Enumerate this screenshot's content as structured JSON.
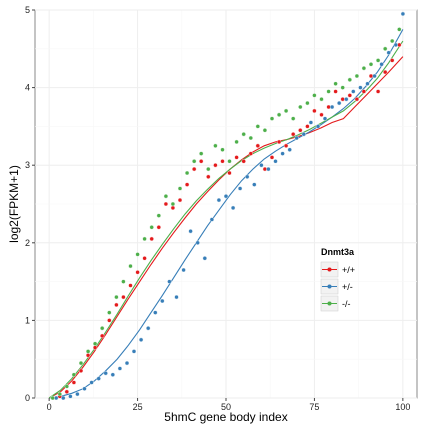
{
  "chart_data": {
    "type": "scatter",
    "xlabel": "5hmC gene body index",
    "ylabel": "log2(FPKM+1)",
    "xlim": [
      -4,
      104
    ],
    "ylim": [
      0,
      5
    ],
    "x_ticks": [
      0,
      25,
      50,
      75,
      100
    ],
    "y_ticks": [
      0,
      1,
      2,
      3,
      4,
      5
    ],
    "x_tick_labels": [
      "0",
      "25",
      "50",
      "75",
      "100"
    ],
    "y_tick_labels": [
      "0",
      "1",
      "2",
      "3",
      "4",
      "5"
    ],
    "grid": true,
    "legend": {
      "title": "Dnmt3a",
      "placement": "right",
      "entries": [
        "+/+",
        "+/-",
        "-/-"
      ]
    },
    "colors": {
      "+/+": "#e41a1c",
      "+/-": "#377eb8",
      "-/-": "#4daf4a"
    },
    "series": [
      {
        "name": "+/+",
        "x": [
          1,
          3,
          5,
          7,
          9,
          11,
          13,
          15,
          17,
          19,
          21,
          23,
          25,
          27,
          29,
          31,
          33,
          35,
          37,
          39,
          41,
          43,
          45,
          47,
          49,
          51,
          53,
          55,
          57,
          59,
          61,
          63,
          65,
          67,
          69,
          71,
          73,
          75,
          77,
          79,
          81,
          83,
          85,
          87,
          89,
          91,
          93,
          95,
          97,
          99
        ],
        "y": [
          0.0,
          0.02,
          0.08,
          0.2,
          0.35,
          0.55,
          0.65,
          0.8,
          1.0,
          1.2,
          1.3,
          1.45,
          1.62,
          1.8,
          2.05,
          2.2,
          2.5,
          2.45,
          2.55,
          2.75,
          2.95,
          3.05,
          2.85,
          3.0,
          3.05,
          2.9,
          3.1,
          3.05,
          3.15,
          3.25,
          2.95,
          3.1,
          3.3,
          3.25,
          3.4,
          3.45,
          3.5,
          3.7,
          3.65,
          3.75,
          3.95,
          3.85,
          3.9,
          3.85,
          3.95,
          4.15,
          3.95,
          4.2,
          4.35,
          4.55
        ],
        "fit_y": [
          0.0,
          0.08,
          0.22,
          0.4,
          0.6,
          0.82,
          1.05,
          1.28,
          1.5,
          1.72,
          1.93,
          2.13,
          2.32,
          2.5,
          2.66,
          2.81,
          2.95,
          3.07,
          3.17,
          3.25,
          3.3,
          3.33,
          3.37,
          3.42,
          3.48,
          3.55,
          3.6,
          3.75,
          3.9,
          4.05,
          4.2,
          4.4
        ]
      },
      {
        "name": "+/-",
        "x": [
          2,
          4,
          6,
          8,
          10,
          12,
          14,
          16,
          18,
          20,
          22,
          24,
          26,
          28,
          30,
          32,
          34,
          36,
          38,
          40,
          42,
          44,
          46,
          48,
          50,
          52,
          54,
          56,
          58,
          60,
          62,
          64,
          66,
          68,
          70,
          72,
          74,
          76,
          78,
          80,
          82,
          84,
          86,
          88,
          90,
          92,
          94,
          96,
          98,
          100
        ],
        "y": [
          0.0,
          0.0,
          0.02,
          0.05,
          0.12,
          0.2,
          0.25,
          0.32,
          0.3,
          0.38,
          0.45,
          0.6,
          0.75,
          0.9,
          1.1,
          1.25,
          1.5,
          1.3,
          1.65,
          2.15,
          2.0,
          1.8,
          2.3,
          2.55,
          2.6,
          2.45,
          2.7,
          2.85,
          2.75,
          3.0,
          2.95,
          3.05,
          3.15,
          3.2,
          3.35,
          3.4,
          3.55,
          3.5,
          3.6,
          3.75,
          3.8,
          3.85,
          3.95,
          4.0,
          4.05,
          4.15,
          4.3,
          4.45,
          4.55,
          4.95
        ],
        "fit_y": [
          0.0,
          0.02,
          0.06,
          0.12,
          0.22,
          0.35,
          0.5,
          0.68,
          0.88,
          1.1,
          1.32,
          1.55,
          1.78,
          2.0,
          2.22,
          2.42,
          2.62,
          2.8,
          2.95,
          3.08,
          3.18,
          3.27,
          3.35,
          3.43,
          3.52,
          3.62,
          3.73,
          3.86,
          4.02,
          4.2,
          4.42,
          4.75
        ]
      },
      {
        "name": "-/-",
        "x": [
          1,
          3,
          5,
          7,
          9,
          11,
          13,
          15,
          17,
          19,
          21,
          23,
          25,
          27,
          29,
          31,
          33,
          35,
          37,
          39,
          41,
          43,
          45,
          47,
          49,
          51,
          53,
          55,
          57,
          59,
          61,
          63,
          65,
          67,
          69,
          71,
          73,
          75,
          77,
          79,
          81,
          83,
          85,
          87,
          89,
          91,
          93,
          95,
          97,
          99
        ],
        "y": [
          0.0,
          0.05,
          0.15,
          0.3,
          0.45,
          0.6,
          0.7,
          0.9,
          1.1,
          1.3,
          1.5,
          1.7,
          1.85,
          2.05,
          2.2,
          2.35,
          2.6,
          2.5,
          2.7,
          2.9,
          3.05,
          3.15,
          2.95,
          3.25,
          3.2,
          3.05,
          3.3,
          3.4,
          3.35,
          3.5,
          3.45,
          3.6,
          3.65,
          3.7,
          3.6,
          3.75,
          3.8,
          3.9,
          3.85,
          3.95,
          4.05,
          4.0,
          4.1,
          4.15,
          4.25,
          4.3,
          4.35,
          4.5,
          4.6,
          4.75
        ],
        "fit_y": [
          0.0,
          0.1,
          0.25,
          0.43,
          0.63,
          0.85,
          1.08,
          1.32,
          1.55,
          1.77,
          1.98,
          2.18,
          2.37,
          2.54,
          2.69,
          2.83,
          2.95,
          3.06,
          3.15,
          3.22,
          3.28,
          3.33,
          3.39,
          3.46,
          3.54,
          3.62,
          3.7,
          3.82,
          3.96,
          4.12,
          4.32,
          4.6
        ]
      }
    ],
    "fit_x": [
      0,
      3.2,
      6.4,
      9.6,
      12.8,
      16,
      19.2,
      22.4,
      25.6,
      28.8,
      32,
      35.2,
      38.4,
      41.6,
      44.8,
      48,
      51.2,
      54.4,
      57.6,
      60.8,
      64,
      67.2,
      70.4,
      73.6,
      76.8,
      80,
      83.2,
      86.4,
      89.6,
      92.8,
      96,
      100
    ]
  }
}
